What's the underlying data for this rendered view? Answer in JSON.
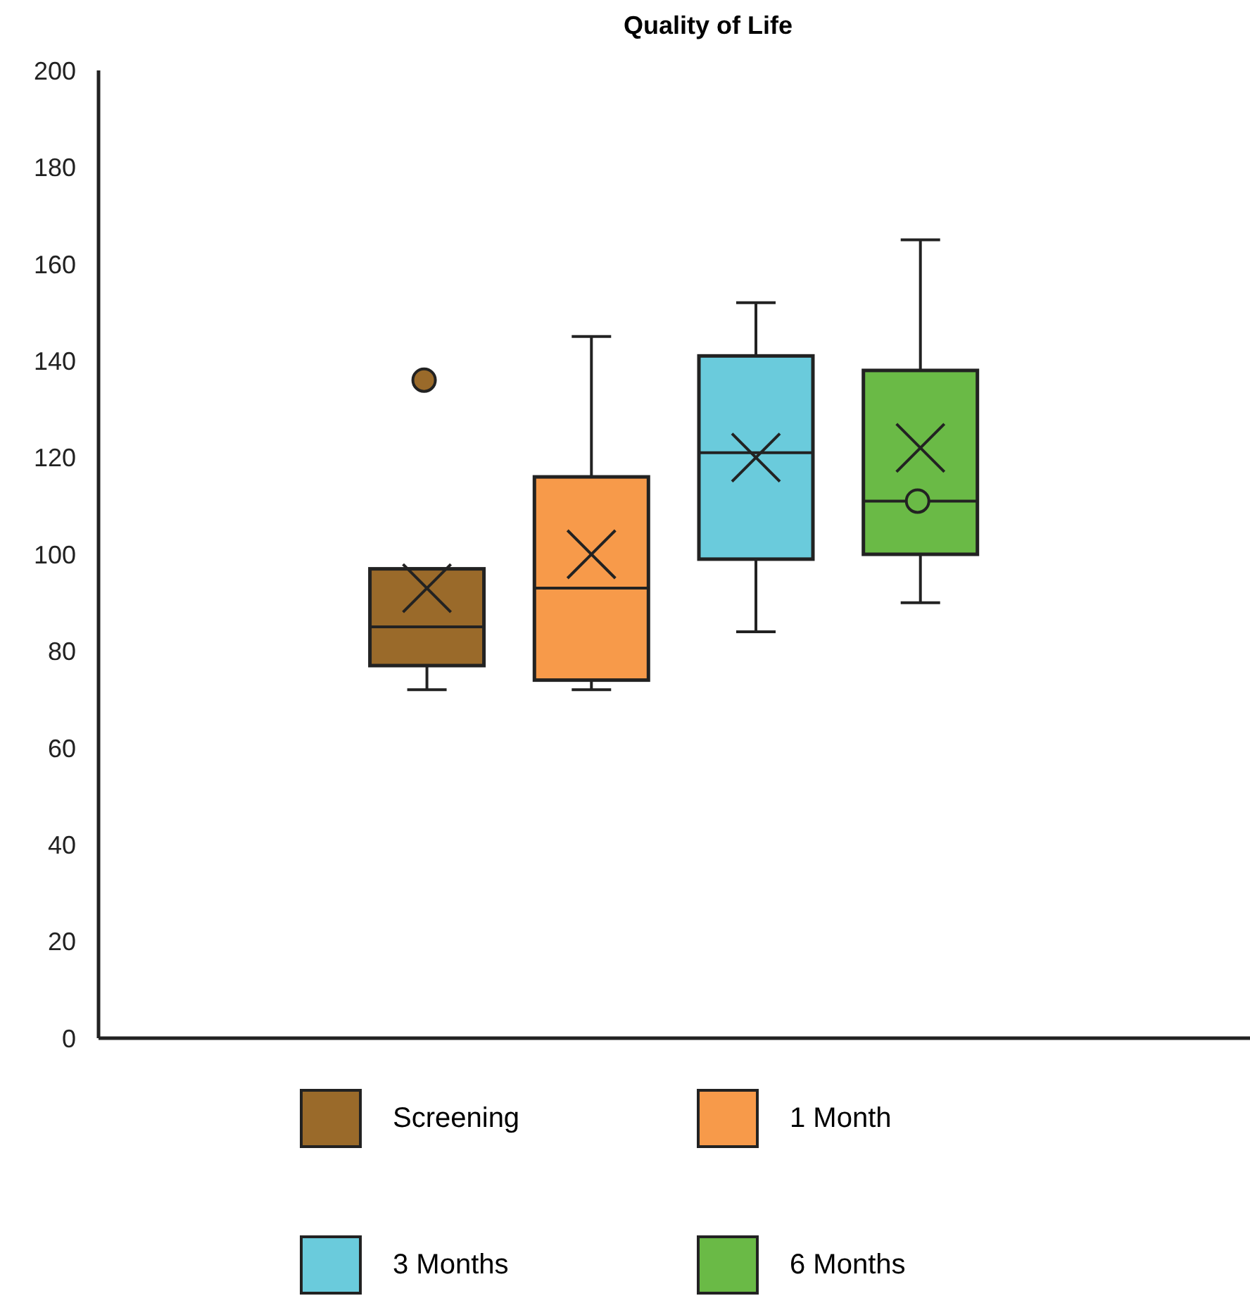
{
  "chart_data": {
    "type": "box",
    "title": "Quality of Life",
    "categories": [
      null
    ],
    "ylim": [
      0,
      200
    ],
    "yticks": [
      0,
      20,
      40,
      60,
      80,
      100,
      120,
      140,
      160,
      180,
      200
    ],
    "legend": "bottom",
    "series": [
      {
        "name": "Screening",
        "color": "#9a6a2a",
        "boxes": [
          {
            "low": 72,
            "q1": 77,
            "median": 85,
            "q3": 97,
            "high": 97,
            "mean": 93,
            "outliers": [
              136
            ]
          }
        ]
      },
      {
        "name": "1 Month",
        "color": "#f79a4a",
        "boxes": [
          {
            "low": 72,
            "q1": 74,
            "median": 93,
            "q3": 116,
            "high": 145,
            "mean": 100
          }
        ]
      },
      {
        "name": "3 Months",
        "color": "#6acbdc",
        "boxes": [
          {
            "low": 84,
            "q1": 99,
            "median": 121,
            "q3": 141,
            "high": 152,
            "mean": 120
          }
        ]
      },
      {
        "name": "6 Months",
        "color": "#6aba46",
        "boxes": [
          {
            "low": 90,
            "q1": 100,
            "median": 111,
            "q3": 138,
            "high": 165,
            "mean": 122,
            "outliers": [
              111
            ]
          }
        ]
      }
    ]
  }
}
